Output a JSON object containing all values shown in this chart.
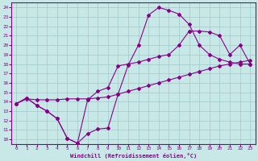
{
  "xlabel": "Windchill (Refroidissement éolien,°C)",
  "bg_color": "#c8e8e8",
  "grid_color": "#a0c8c8",
  "line_color": "#880088",
  "spine_color": "#880088",
  "xlim": [
    -0.5,
    23.5
  ],
  "ylim": [
    9.5,
    24.5
  ],
  "xticks": [
    0,
    1,
    2,
    3,
    4,
    5,
    6,
    7,
    8,
    9,
    10,
    11,
    12,
    13,
    14,
    15,
    16,
    17,
    18,
    19,
    20,
    21,
    22,
    23
  ],
  "yticks": [
    10,
    11,
    12,
    13,
    14,
    15,
    16,
    17,
    18,
    19,
    20,
    21,
    22,
    23,
    24
  ],
  "line1_x": [
    0,
    1,
    2,
    3,
    4,
    5,
    6,
    7,
    8,
    9,
    10,
    11,
    12,
    13,
    14,
    15,
    16,
    17,
    18,
    19,
    20,
    21,
    22,
    23
  ],
  "line1_y": [
    13.8,
    14.4,
    13.6,
    13.0,
    12.2,
    10.1,
    9.6,
    10.6,
    11.1,
    11.2,
    14.8,
    17.9,
    20.0,
    23.2,
    24.0,
    23.7,
    23.3,
    22.2,
    20.0,
    19.0,
    18.5,
    18.2,
    18.0,
    18.0
  ],
  "line2_x": [
    0,
    1,
    2,
    3,
    4,
    5,
    6,
    7,
    8,
    9,
    10,
    11,
    12,
    13,
    14,
    15,
    16,
    17
  ],
  "line2_y": [
    13.8,
    14.4,
    13.6,
    13.0,
    12.2,
    10.1,
    9.6,
    14.2,
    15.1,
    15.5,
    17.8,
    18.0,
    18.2,
    18.5,
    18.8,
    19.0,
    20.0,
    21.5
  ],
  "line3_x": [
    0,
    1,
    2,
    3,
    4,
    5,
    6,
    7,
    8,
    9,
    10,
    11,
    12,
    13,
    14,
    15,
    16,
    17,
    18,
    19,
    20,
    21,
    22,
    23
  ],
  "line3_y": [
    13.8,
    14.3,
    14.2,
    14.2,
    14.2,
    14.3,
    14.3,
    14.3,
    14.4,
    14.5,
    14.8,
    15.1,
    15.4,
    15.7,
    16.0,
    16.3,
    16.6,
    16.9,
    17.2,
    17.5,
    17.8,
    18.0,
    18.2,
    18.4
  ],
  "line4_x": [
    17,
    18,
    19,
    20,
    21,
    22,
    23
  ],
  "line4_y": [
    21.5,
    21.5,
    21.4,
    21.0,
    19.0,
    20.0,
    18.0
  ]
}
